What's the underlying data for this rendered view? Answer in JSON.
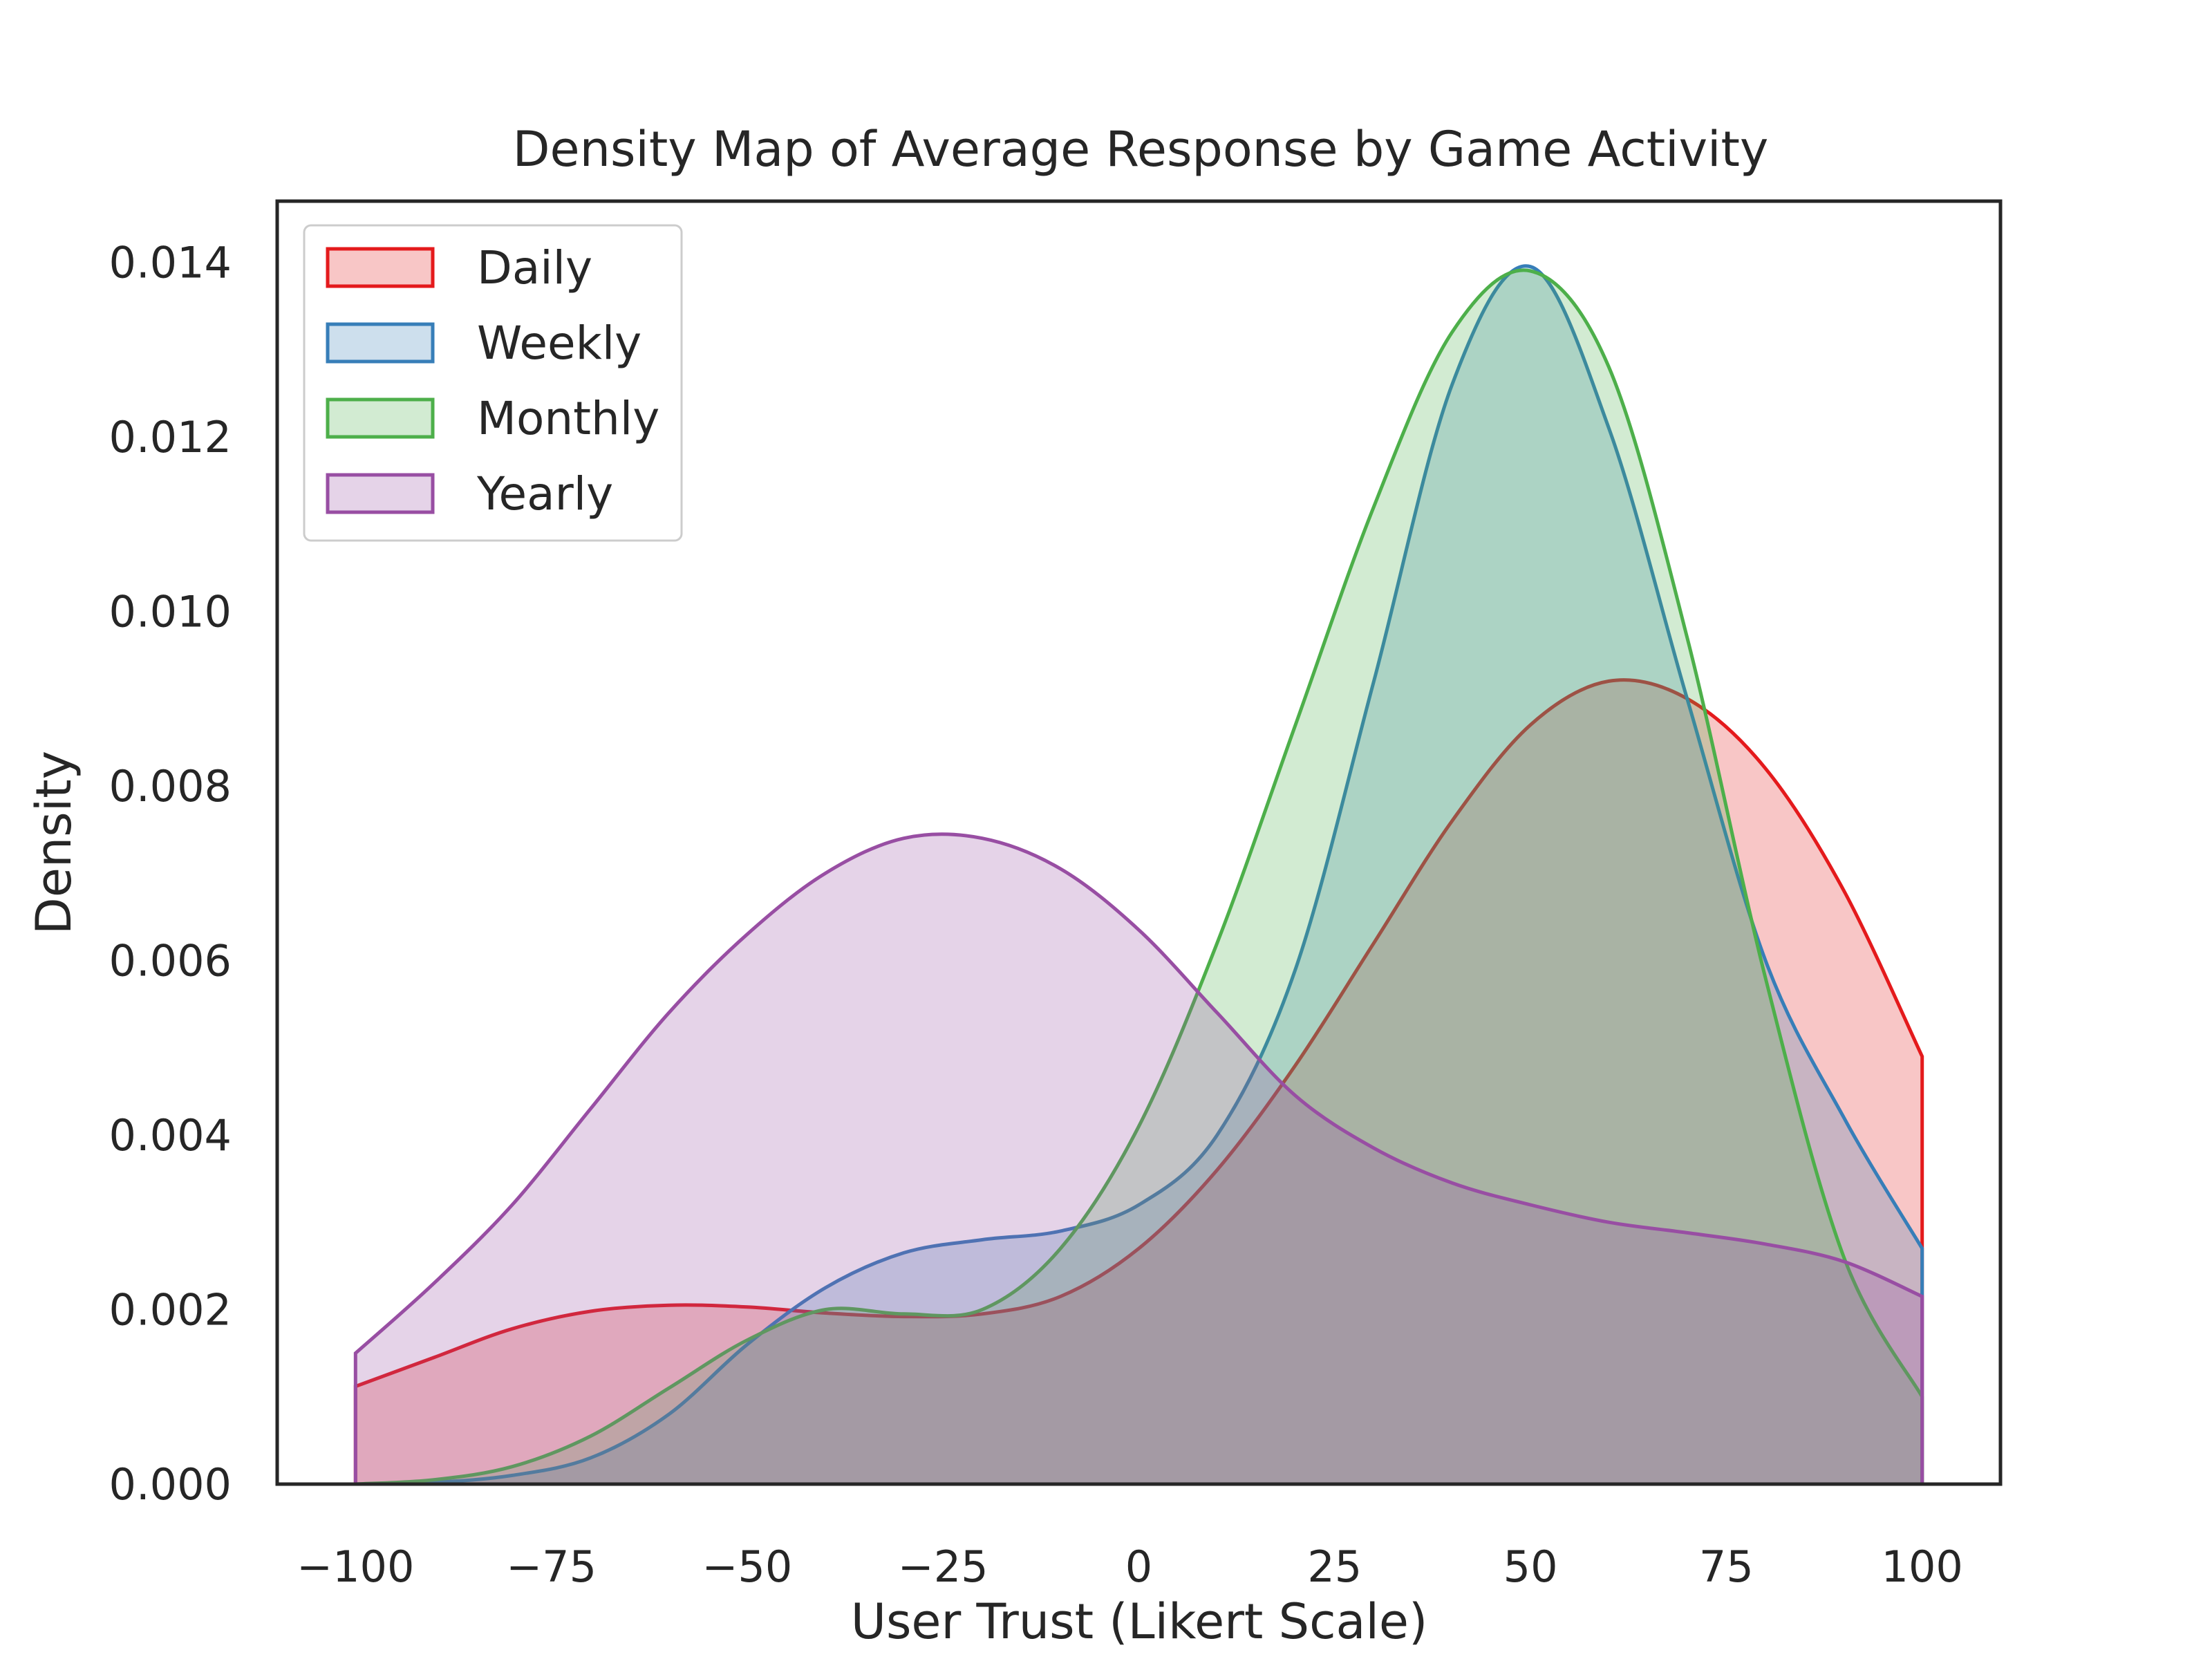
{
  "chart_data": {
    "type": "area",
    "title": "Density Map of Average Response by Game Activity",
    "xlabel": "User Trust (Likert Scale)",
    "ylabel": "Density",
    "xlim": [
      -110,
      110
    ],
    "ylim": [
      0,
      0.0147
    ],
    "x_ticks": [
      "−100",
      "−75",
      "−50",
      "−25",
      "0",
      "25",
      "50",
      "75",
      "100"
    ],
    "x_tick_values": [
      -100,
      -75,
      -50,
      -25,
      0,
      25,
      50,
      75,
      100
    ],
    "y_ticks": [
      "0.000",
      "0.002",
      "0.004",
      "0.006",
      "0.008",
      "0.010",
      "0.012",
      "0.014"
    ],
    "y_tick_values": [
      0,
      0.002,
      0.004,
      0.006,
      0.008,
      0.01,
      0.012,
      0.014
    ],
    "grid": false,
    "legend_position": "top-left",
    "x": [
      -100,
      -90,
      -80,
      -70,
      -60,
      -50,
      -40,
      -30,
      -20,
      -10,
      0,
      10,
      20,
      30,
      40,
      50,
      60,
      70,
      80,
      90,
      100
    ],
    "series": [
      {
        "name": "Daily",
        "color": "#e41a1c",
        "values": [
          0.00112,
          0.00145,
          0.00178,
          0.00198,
          0.00205,
          0.00203,
          0.00196,
          0.00192,
          0.00195,
          0.00215,
          0.0027,
          0.0036,
          0.0048,
          0.0062,
          0.0076,
          0.0087,
          0.0092,
          0.009,
          0.0082,
          0.0068,
          0.0049
        ]
      },
      {
        "name": "Weekly",
        "color": "#377eb8",
        "values": [
          0.0,
          2e-05,
          0.0001,
          0.0003,
          0.0008,
          0.0016,
          0.00225,
          0.00265,
          0.0028,
          0.0029,
          0.0032,
          0.004,
          0.0059,
          0.0092,
          0.0126,
          0.01395,
          0.0121,
          0.009,
          0.006,
          0.0042,
          0.0027
        ]
      },
      {
        "name": "Monthly",
        "color": "#4daf4a",
        "values": [
          0.0,
          5e-05,
          0.0002,
          0.00055,
          0.0011,
          0.00165,
          0.002,
          0.00195,
          0.002,
          0.0027,
          0.0041,
          0.0062,
          0.0087,
          0.0112,
          0.0132,
          0.0139,
          0.0128,
          0.0097,
          0.0058,
          0.0026,
          0.001
        ]
      },
      {
        "name": "Yearly",
        "color": "#984ea3",
        "values": [
          0.0015,
          0.0023,
          0.0032,
          0.0043,
          0.0054,
          0.0063,
          0.007,
          0.0074,
          0.0074,
          0.00705,
          0.00635,
          0.0054,
          0.00445,
          0.00385,
          0.00345,
          0.0032,
          0.003,
          0.00288,
          0.00275,
          0.00255,
          0.00215
        ]
      }
    ]
  }
}
